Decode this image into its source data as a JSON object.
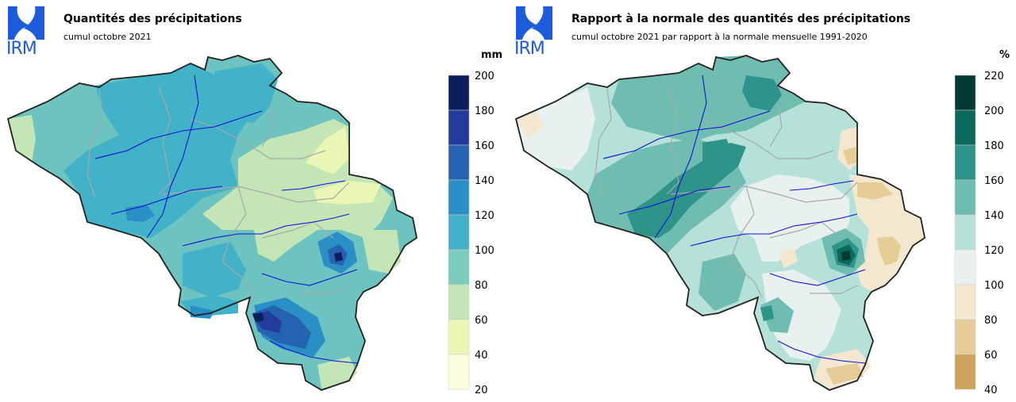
{
  "panels": [
    {
      "logo_text": "IRM",
      "title": "Quantités des précipitations",
      "subtitle": "cumul octobre 2021",
      "unit": "mm",
      "legend": {
        "ticks": [
          "200",
          "180",
          "160",
          "140",
          "120",
          "100",
          "80",
          "60",
          "40",
          "20"
        ],
        "colors": [
          "#0c1f5c",
          "#233b9c",
          "#2563b0",
          "#2a8fc4",
          "#41b2c7",
          "#7ccbbd",
          "#c4e6b6",
          "#eaf7b4",
          "#fbfddd"
        ]
      },
      "region_colors": {
        "base": "#6dc3c0",
        "a": "#41b2c7",
        "b": "#c4e6b6",
        "c": "#eaf7b4",
        "d": "#2a8fc4",
        "e": "#2563b0",
        "f": "#233b9c",
        "g": "#0c1f5c"
      }
    },
    {
      "logo_text": "IRM",
      "title": "Rapport à la normale des quantités des précipitations",
      "subtitle": "cumul octobre 2021 par rapport à la normale mensuelle 1991-2020",
      "unit": "%",
      "legend": {
        "ticks": [
          "220",
          "200",
          "180",
          "160",
          "140",
          "120",
          "100",
          "80",
          "60",
          "40"
        ],
        "colors": [
          "#013b32",
          "#0b6a5b",
          "#2e948a",
          "#6fbcb1",
          "#b5e1d9",
          "#e8f1ef",
          "#f3e7cf",
          "#e6cc96",
          "#d0a35c"
        ]
      },
      "region_colors": {
        "base": "#b5e1d9",
        "a": "#6fbcb1",
        "b": "#e8f1ef",
        "c": "#f3e7cf",
        "d": "#e6cc96",
        "e": "#2e948a",
        "f": "#0b6a5b",
        "g": "#013b32"
      }
    }
  ]
}
